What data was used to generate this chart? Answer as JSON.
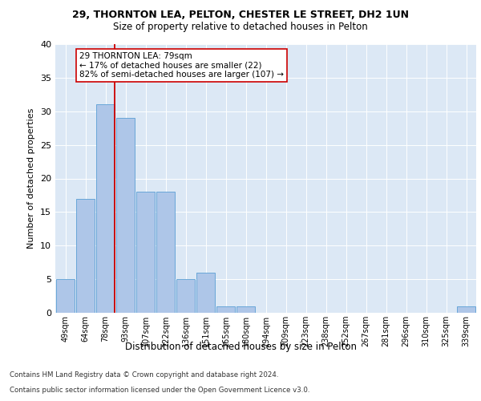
{
  "title1": "29, THORNTON LEA, PELTON, CHESTER LE STREET, DH2 1UN",
  "title2": "Size of property relative to detached houses in Pelton",
  "xlabel": "Distribution of detached houses by size in Pelton",
  "ylabel": "Number of detached properties",
  "categories": [
    "49sqm",
    "64sqm",
    "78sqm",
    "93sqm",
    "107sqm",
    "122sqm",
    "136sqm",
    "151sqm",
    "165sqm",
    "180sqm",
    "194sqm",
    "209sqm",
    "223sqm",
    "238sqm",
    "252sqm",
    "267sqm",
    "281sqm",
    "296sqm",
    "310sqm",
    "325sqm",
    "339sqm"
  ],
  "values": [
    5,
    17,
    31,
    29,
    18,
    18,
    5,
    6,
    1,
    1,
    0,
    0,
    0,
    0,
    0,
    0,
    0,
    0,
    0,
    0,
    1
  ],
  "bar_color": "#aec6e8",
  "bar_edge_color": "#5a9fd4",
  "vline_idx": 2,
  "vline_color": "#cc0000",
  "annotation_text": "29 THORNTON LEA: 79sqm\n← 17% of detached houses are smaller (22)\n82% of semi-detached houses are larger (107) →",
  "annotation_box_color": "#ffffff",
  "annotation_box_edge": "#cc0000",
  "ylim": [
    0,
    40
  ],
  "yticks": [
    0,
    5,
    10,
    15,
    20,
    25,
    30,
    35,
    40
  ],
  "bg_color": "#dce8f5",
  "footer1": "Contains HM Land Registry data © Crown copyright and database right 2024.",
  "footer2": "Contains public sector information licensed under the Open Government Licence v3.0."
}
